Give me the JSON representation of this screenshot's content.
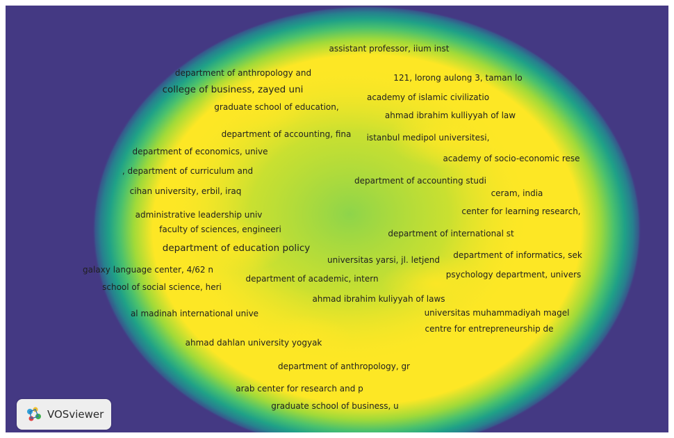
{
  "colors": {
    "background": "#443983",
    "density_high": "#fde725",
    "density_mid": "#5ec962",
    "density_low": "#21918c"
  },
  "visualization": {
    "mode": "density",
    "labels": [
      {
        "text": "assistant professor, iium inst"
      },
      {
        "text": "department of anthropology and"
      },
      {
        "text": "121, lorong aulong 3, taman lo"
      },
      {
        "text": "college of business, zayed uni"
      },
      {
        "text": "academy of islamic civilizatio"
      },
      {
        "text": "graduate school of education,"
      },
      {
        "text": "ahmad ibrahim kulliyyah of law"
      },
      {
        "text": "department of accounting, fina"
      },
      {
        "text": "istanbul medipol universitesi,"
      },
      {
        "text": "department of economics, unive"
      },
      {
        "text": "academy of socio-economic rese"
      },
      {
        "text": ", department of curriculum and"
      },
      {
        "text": "department of accounting studi"
      },
      {
        "text": "cihan university, erbil, iraq"
      },
      {
        "text": "ceram, india"
      },
      {
        "text": "center for learning research,"
      },
      {
        "text": "administrative leadership univ"
      },
      {
        "text": "faculty of sciences, engineeri"
      },
      {
        "text": "department of international st"
      },
      {
        "text": "department of education policy"
      },
      {
        "text": "department of informatics, sek"
      },
      {
        "text": "universitas yarsi, jl. letjend"
      },
      {
        "text": "galaxy language center, 4/62 n"
      },
      {
        "text": "psychology department, univers"
      },
      {
        "text": "department of academic, intern"
      },
      {
        "text": "school of social science, heri"
      },
      {
        "text": "ahmad ibrahim kuliyyah of laws"
      },
      {
        "text": "al madinah international unive"
      },
      {
        "text": "universitas muhammadiyah magel"
      },
      {
        "text": "centre for entrepreneurship de"
      },
      {
        "text": "ahmad dahlan university yogyak"
      },
      {
        "text": "department of anthropology, gr"
      },
      {
        "text": "arab center for research and p"
      },
      {
        "text": "graduate school of business, u"
      }
    ]
  },
  "logo": {
    "text": "VOSviewer",
    "icon": "vosviewer-logo-icon"
  }
}
